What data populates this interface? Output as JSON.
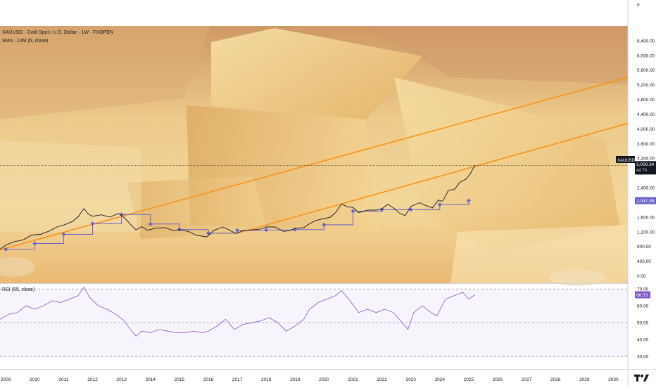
{
  "header": {
    "symbol_line": "XAUUSD · Gold Spot / U.S. Dollar · 1W · FXOPEN",
    "indicator_line": "SMA · 12M (5, close)"
  },
  "rsi_header": "RSI (55, close)",
  "badges": {
    "symbol": "XAUUSD",
    "price": "3,008.34",
    "countdown": "4d 7h",
    "sma": "2,047.98",
    "rsi": "66.53"
  },
  "colors": {
    "price_line": "#131722",
    "trendline": "#f7931a",
    "sma": "#6c63c9",
    "rsi_line": "#7e57c2",
    "badge_dark": "#131722",
    "badge_sma": "#6c63c9",
    "badge_rsi": "#7e57c2"
  },
  "chart_data": [
    {
      "type": "line",
      "x_unit": "year",
      "x_range": [
        2008.8,
        2030.5
      ],
      "ylim": [
        -200,
        6800
      ],
      "y_ticks": [
        0,
        400,
        800,
        1200,
        1600,
        2000,
        2400,
        2800,
        3200,
        3600,
        4000,
        4400,
        4800,
        5200,
        5600,
        6000,
        6400
      ],
      "y_tick_labels": [
        "0.00",
        "400.00",
        "800.00",
        "1,200.00",
        "1,600.00",
        "2,000.00",
        "2,400.00",
        "2,800.00",
        "3,200.00",
        "3,600.00",
        "4,000.00",
        "4,400.00",
        "4,800.00",
        "5,200.00",
        "5,600.00",
        "6,000.00",
        "6,400.00"
      ],
      "x_ticks": [
        2009,
        2010,
        2011,
        2012,
        2013,
        2014,
        2015,
        2016,
        2017,
        2018,
        2019,
        2020,
        2021,
        2022,
        2023,
        2024,
        2025,
        2026,
        2027,
        2028,
        2029,
        2030
      ],
      "x_tick_labels": [
        "2009",
        "2010",
        "2011",
        "2012",
        "2013",
        "2014",
        "2015",
        "2016",
        "2017",
        "2018",
        "2019",
        "2020",
        "2021",
        "2022",
        "2023",
        "2024",
        "2025",
        "2026",
        "2027",
        "2028",
        "2029",
        "2030"
      ],
      "price_series": {
        "x": [
          2008.8,
          2009.0,
          2009.3,
          2009.6,
          2009.9,
          2010.2,
          2010.5,
          2010.8,
          2011.0,
          2011.3,
          2011.5,
          2011.7,
          2011.85,
          2012.0,
          2012.3,
          2012.6,
          2012.9,
          2013.1,
          2013.3,
          2013.5,
          2013.7,
          2013.9,
          2014.2,
          2014.5,
          2014.8,
          2015.0,
          2015.3,
          2015.6,
          2015.95,
          2016.2,
          2016.5,
          2016.7,
          2016.95,
          2017.2,
          2017.5,
          2017.8,
          2018.0,
          2018.3,
          2018.6,
          2018.8,
          2019.0,
          2019.3,
          2019.5,
          2019.7,
          2020.0,
          2020.2,
          2020.4,
          2020.6,
          2020.8,
          2021.0,
          2021.2,
          2021.5,
          2021.8,
          2022.0,
          2022.2,
          2022.4,
          2022.6,
          2022.8,
          2023.0,
          2023.3,
          2023.5,
          2023.75,
          2023.95,
          2024.1,
          2024.3,
          2024.5,
          2024.7,
          2024.9,
          2025.05,
          2025.15,
          2025.22
        ],
        "y": [
          720,
          840,
          930,
          980,
          1110,
          1130,
          1220,
          1340,
          1380,
          1480,
          1610,
          1830,
          1680,
          1620,
          1660,
          1600,
          1700,
          1580,
          1410,
          1250,
          1340,
          1240,
          1300,
          1310,
          1230,
          1260,
          1210,
          1100,
          1060,
          1240,
          1330,
          1260,
          1150,
          1230,
          1250,
          1270,
          1330,
          1330,
          1210,
          1230,
          1290,
          1310,
          1420,
          1500,
          1560,
          1590,
          1720,
          1960,
          1880,
          1860,
          1720,
          1790,
          1790,
          1820,
          1950,
          1850,
          1710,
          1640,
          1890,
          1990,
          1920,
          1850,
          2060,
          2030,
          2330,
          2350,
          2550,
          2630,
          2770,
          2920,
          3008
        ]
      },
      "sma_series": {
        "x": [
          2009.0,
          2010.0,
          2011.0,
          2012.0,
          2013.0,
          2014.0,
          2015.0,
          2016.0,
          2017.0,
          2018.0,
          2019.0,
          2020.0,
          2021.0,
          2022.0,
          2023.0,
          2024.0,
          2025.0
        ],
        "y": [
          722,
          880,
          1130,
          1420,
          1670,
          1410,
          1260,
          1160,
          1240,
          1250,
          1260,
          1390,
          1760,
          1800,
          1800,
          1940,
          2048
        ]
      },
      "trendlines": [
        {
          "x": [
            2008.8,
            2030.5
          ],
          "y": [
            710,
            5400
          ]
        },
        {
          "x": [
            2016.95,
            2030.5
          ],
          "y": [
            1150,
            4150
          ]
        }
      ],
      "current_price": 3008.34,
      "current_sma": 2047.98
    },
    {
      "type": "line",
      "title": "RSI (55, close)",
      "ylim": [
        23,
        73
      ],
      "y_ticks": [
        30,
        40,
        50,
        60,
        70
      ],
      "y_tick_labels": [
        "30.00",
        "40.00",
        "50.00",
        "60.00",
        "70.00"
      ],
      "x": [
        2008.8,
        2009.1,
        2009.4,
        2009.7,
        2010.0,
        2010.3,
        2010.6,
        2010.9,
        2011.2,
        2011.5,
        2011.7,
        2011.9,
        2012.2,
        2012.5,
        2012.8,
        2013.1,
        2013.3,
        2013.5,
        2013.7,
        2014.0,
        2014.3,
        2014.6,
        2014.9,
        2015.2,
        2015.5,
        2015.8,
        2016.0,
        2016.3,
        2016.6,
        2016.9,
        2017.2,
        2017.5,
        2017.8,
        2018.1,
        2018.4,
        2018.7,
        2019.0,
        2019.3,
        2019.5,
        2019.8,
        2020.1,
        2020.4,
        2020.6,
        2020.9,
        2021.2,
        2021.5,
        2021.8,
        2022.1,
        2022.4,
        2022.7,
        2022.9,
        2023.1,
        2023.4,
        2023.7,
        2023.9,
        2024.2,
        2024.5,
        2024.8,
        2025.0,
        2025.22
      ],
      "values": [
        52,
        55,
        56,
        60,
        58,
        60,
        63,
        62,
        64,
        66,
        71,
        65,
        60,
        58,
        55,
        51,
        46,
        42,
        45,
        44,
        46,
        45,
        44,
        44,
        45,
        44,
        45,
        48,
        52,
        46,
        49,
        50,
        51,
        53,
        50,
        45,
        48,
        52,
        58,
        62,
        64,
        66,
        69,
        63,
        56,
        58,
        56,
        58,
        56,
        50,
        46,
        56,
        60,
        56,
        54,
        64,
        66,
        68,
        64,
        66.53
      ]
    }
  ]
}
